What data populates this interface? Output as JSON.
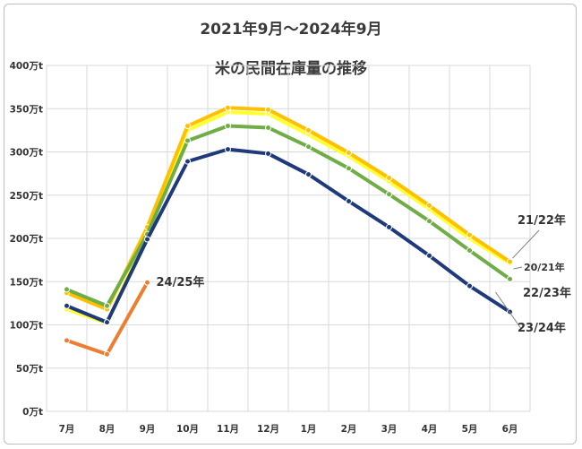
{
  "chart_data": {
    "type": "line",
    "title": "2021年9月～2024年9月",
    "subtitle": "米の民間在庫量の推移",
    "xlabel": "",
    "ylabel": "",
    "categories": [
      "7月",
      "8月",
      "9月",
      "10月",
      "11月",
      "12月",
      "1月",
      "2月",
      "3月",
      "4月",
      "5月",
      "6月"
    ],
    "yticks": [
      "0万t",
      "50万t",
      "100万t",
      "150万t",
      "200万t",
      "250万t",
      "300万t",
      "350万t",
      "400万t"
    ],
    "ylim": [
      0,
      400
    ],
    "grid": true,
    "legend": "inline-labels",
    "series": [
      {
        "name": "20/21年",
        "color": "#ffff33",
        "values": [
          null,
          null,
          null,
          null,
          null,
          null,
          null,
          null,
          null,
          null,
          null,
          null
        ]
      },
      {
        "name": "21/22年",
        "color": "#ffc000",
        "values": [
          137,
          118,
          213,
          330,
          351,
          349,
          325,
          299,
          270,
          238,
          204,
          173
        ]
      },
      {
        "name": "22/23年",
        "color": "#70ad47",
        "values": [
          141,
          122,
          205,
          313,
          330,
          328,
          306,
          281,
          251,
          220,
          186,
          153
        ]
      },
      {
        "name": "23/24年",
        "color": "#1f3a7a",
        "values": [
          122,
          103,
          199,
          289,
          303,
          298,
          274,
          243,
          213,
          180,
          145,
          115
        ]
      },
      {
        "name": "24/25年",
        "color": "#ed7d31",
        "values": [
          82,
          66,
          149,
          null,
          null,
          null,
          null,
          null,
          null,
          null,
          null,
          null
        ]
      }
    ],
    "series_extra": {
      "20/21年": [
        118,
        102,
        206,
        325,
        346,
        344,
        320,
        295,
        266,
        234,
        200,
        171
      ]
    }
  }
}
